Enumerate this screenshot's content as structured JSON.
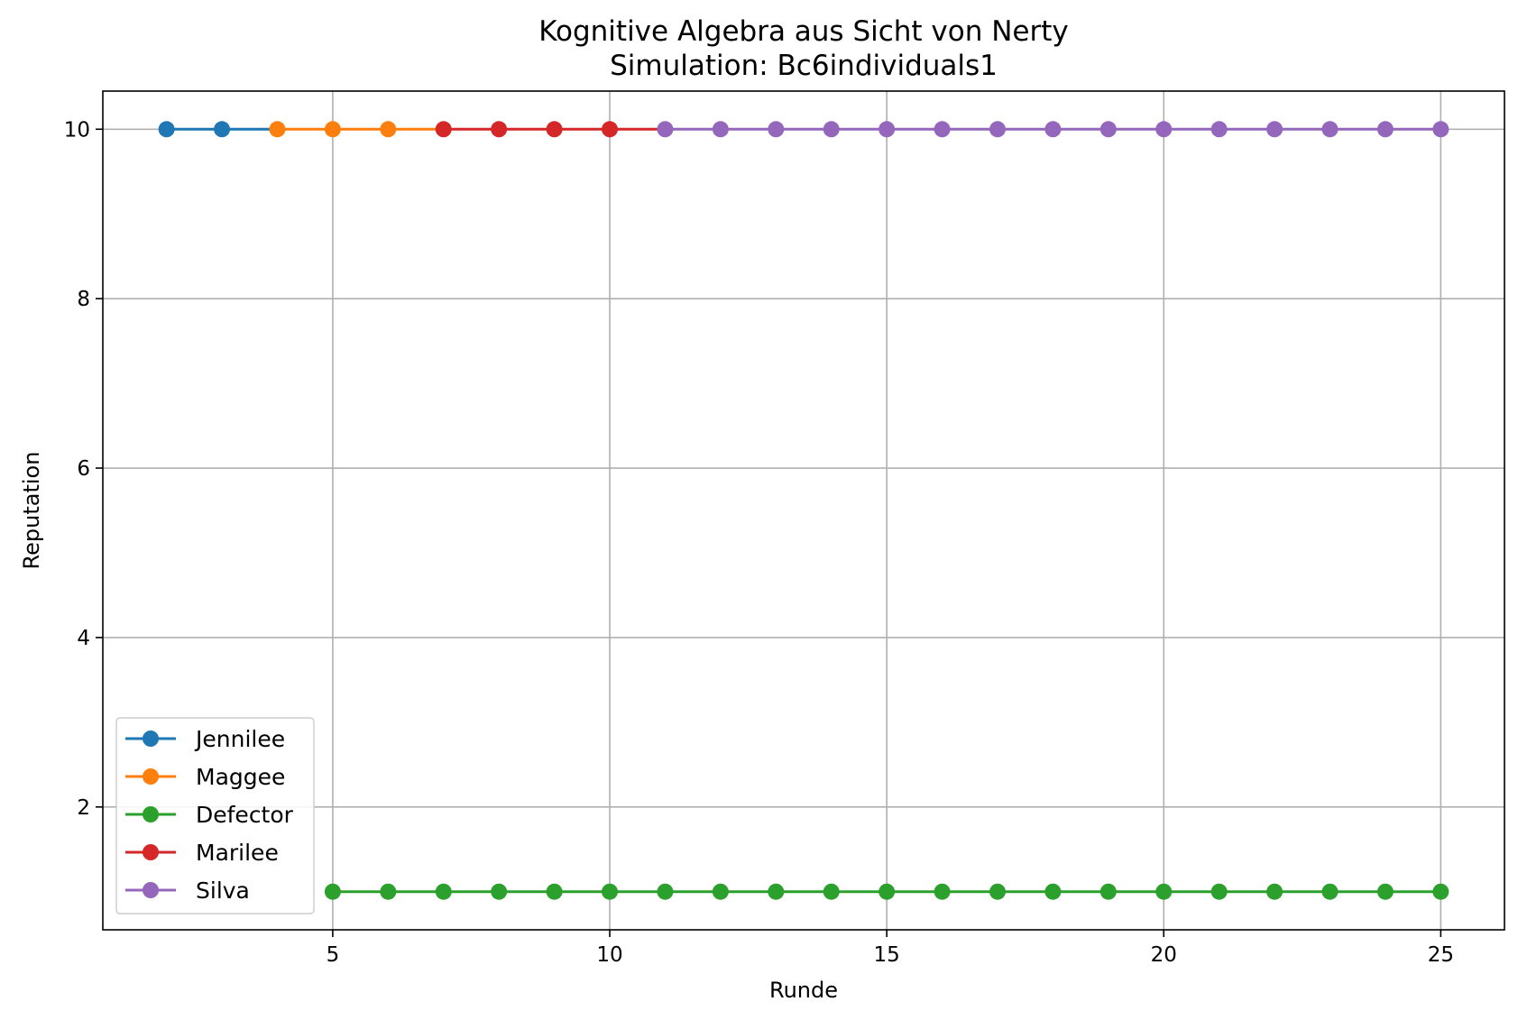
{
  "chart_data": {
    "type": "line",
    "title": "Kognitive Algebra aus Sicht von Nerty",
    "subtitle": "Simulation: Bc6individuals1",
    "xlabel": "Runde",
    "ylabel": "Reputation",
    "xlim": [
      0.85,
      26.15
    ],
    "ylim": [
      0.55,
      10.45
    ],
    "xticks": [
      5,
      10,
      15,
      20,
      25
    ],
    "yticks": [
      2,
      4,
      6,
      8,
      10
    ],
    "grid": true,
    "legend_position": "lower-left",
    "series": [
      {
        "name": "Jennilee",
        "color": "#1f77b4",
        "points": [
          [
            2,
            10
          ],
          [
            3,
            10
          ],
          [
            4,
            10
          ]
        ],
        "markers": [
          [
            2,
            10
          ],
          [
            3,
            10
          ]
        ]
      },
      {
        "name": "Maggee",
        "color": "#ff7f0e",
        "points": [
          [
            4,
            10
          ],
          [
            5,
            10
          ],
          [
            6,
            10
          ],
          [
            7,
            10
          ]
        ],
        "markers": [
          [
            4,
            10
          ],
          [
            5,
            10
          ],
          [
            6,
            10
          ]
        ]
      },
      {
        "name": "Defector",
        "color": "#2ca02c",
        "points": [
          [
            5,
            1
          ],
          [
            6,
            1
          ],
          [
            7,
            1
          ],
          [
            8,
            1
          ],
          [
            9,
            1
          ],
          [
            10,
            1
          ],
          [
            11,
            1
          ],
          [
            12,
            1
          ],
          [
            13,
            1
          ],
          [
            14,
            1
          ],
          [
            15,
            1
          ],
          [
            16,
            1
          ],
          [
            17,
            1
          ],
          [
            18,
            1
          ],
          [
            19,
            1
          ],
          [
            20,
            1
          ],
          [
            21,
            1
          ],
          [
            22,
            1
          ],
          [
            23,
            1
          ],
          [
            24,
            1
          ],
          [
            25,
            1
          ]
        ],
        "markers": [
          [
            5,
            1
          ],
          [
            6,
            1
          ],
          [
            7,
            1
          ],
          [
            8,
            1
          ],
          [
            9,
            1
          ],
          [
            10,
            1
          ],
          [
            11,
            1
          ],
          [
            12,
            1
          ],
          [
            13,
            1
          ],
          [
            14,
            1
          ],
          [
            15,
            1
          ],
          [
            16,
            1
          ],
          [
            17,
            1
          ],
          [
            18,
            1
          ],
          [
            19,
            1
          ],
          [
            20,
            1
          ],
          [
            21,
            1
          ],
          [
            22,
            1
          ],
          [
            23,
            1
          ],
          [
            24,
            1
          ],
          [
            25,
            1
          ]
        ]
      },
      {
        "name": "Marilee",
        "color": "#d62728",
        "points": [
          [
            7,
            10
          ],
          [
            8,
            10
          ],
          [
            9,
            10
          ],
          [
            10,
            10
          ],
          [
            11,
            10
          ]
        ],
        "markers": [
          [
            7,
            10
          ],
          [
            8,
            10
          ],
          [
            9,
            10
          ],
          [
            10,
            10
          ]
        ]
      },
      {
        "name": "Silva",
        "color": "#9467bd",
        "points": [
          [
            11,
            10
          ],
          [
            12,
            10
          ],
          [
            13,
            10
          ],
          [
            14,
            10
          ],
          [
            15,
            10
          ],
          [
            16,
            10
          ],
          [
            17,
            10
          ],
          [
            18,
            10
          ],
          [
            19,
            10
          ],
          [
            20,
            10
          ],
          [
            21,
            10
          ],
          [
            22,
            10
          ],
          [
            23,
            10
          ],
          [
            24,
            10
          ],
          [
            25,
            10
          ]
        ],
        "markers": [
          [
            11,
            10
          ],
          [
            12,
            10
          ],
          [
            13,
            10
          ],
          [
            14,
            10
          ],
          [
            15,
            10
          ],
          [
            16,
            10
          ],
          [
            17,
            10
          ],
          [
            18,
            10
          ],
          [
            19,
            10
          ],
          [
            20,
            10
          ],
          [
            21,
            10
          ],
          [
            22,
            10
          ],
          [
            23,
            10
          ],
          [
            24,
            10
          ],
          [
            25,
            10
          ]
        ]
      }
    ]
  }
}
